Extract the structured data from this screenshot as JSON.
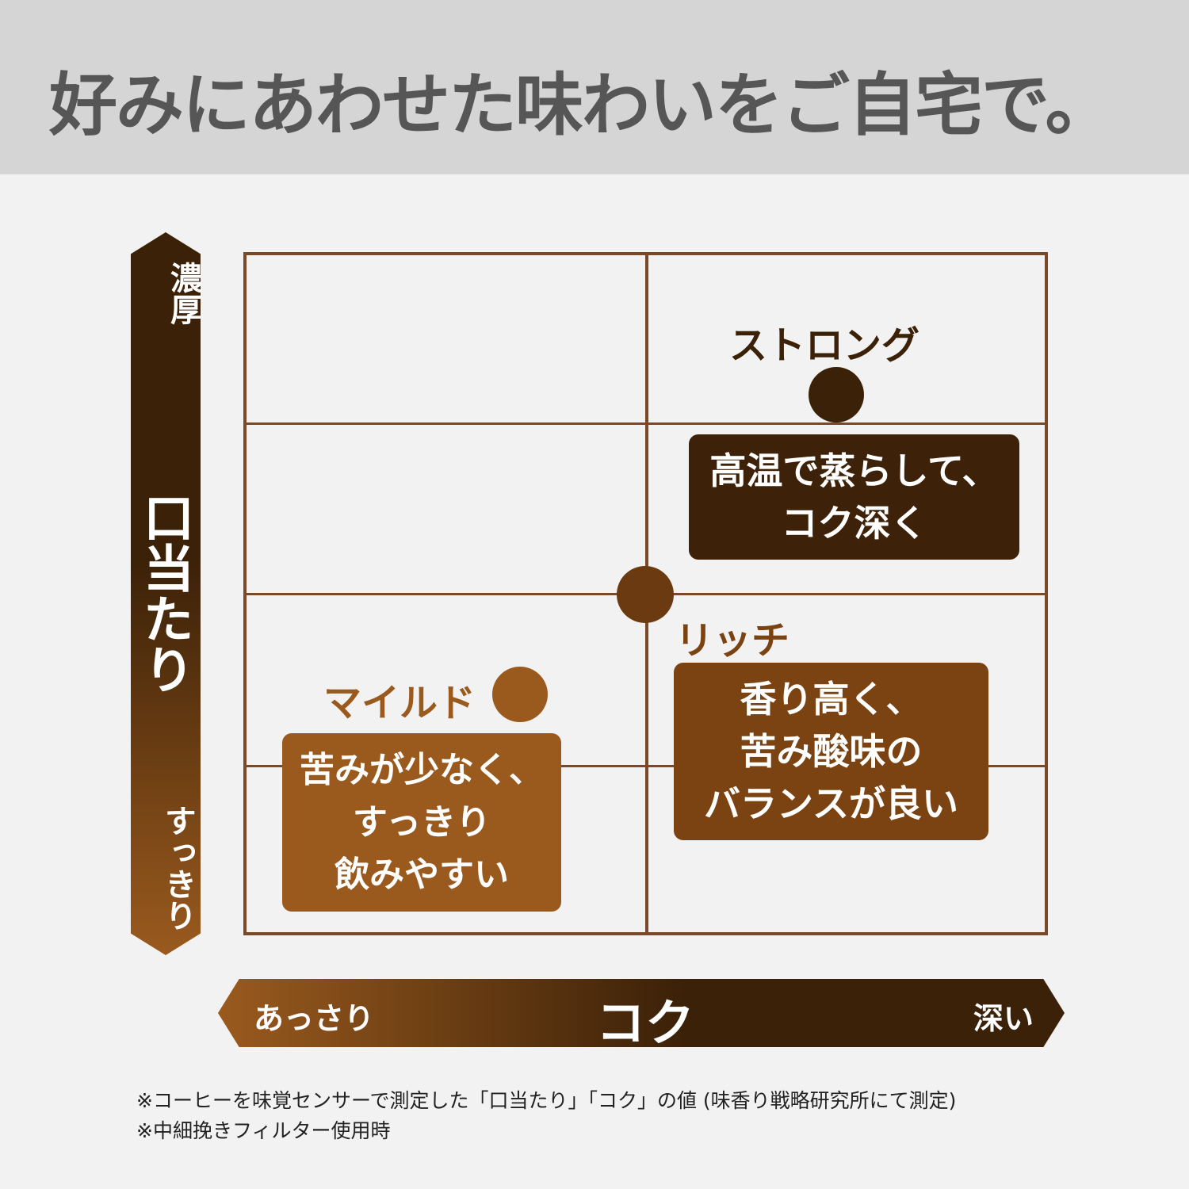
{
  "header": {
    "title": "好みにあわせた味わいをご自宅で。"
  },
  "y_axis": {
    "top": "濃厚",
    "label": "口当たり",
    "bottom": "すっきり"
  },
  "x_axis": {
    "left": "あっさり",
    "label": "コク",
    "right": "深い"
  },
  "types": [
    {
      "name": "ストロング",
      "lines": [
        "高温で蒸らして、",
        "コク深く"
      ],
      "color": "#3b2108"
    },
    {
      "name": "リッチ",
      "lines": [
        "香り高く、",
        "苦み酸味の",
        "バランスが良い"
      ],
      "color": "#7a4311"
    },
    {
      "name": "マイルド",
      "lines": [
        "苦みが少なく、",
        "すっきり",
        "飲みやすい"
      ],
      "color": "#9a5a1e"
    }
  ],
  "notes": [
    "※コーヒーを味覚センサーで測定した「口当たり」「コク」の値 (味香り戦略研究所にて測定)",
    "※中細挽きフィルター使用時"
  ]
}
